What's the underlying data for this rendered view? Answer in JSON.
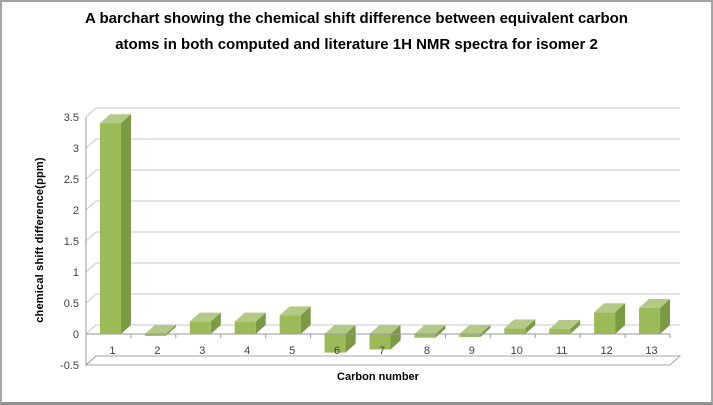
{
  "window": {
    "background": "#ffffff",
    "frame_border_color": "#a4a4a4"
  },
  "chart_data": {
    "type": "bar",
    "style": "3d-column",
    "title": "A barchart showing the chemical shift difference between equivalent carbon atoms in both computed and literature  1H NMR spectra for isomer 2",
    "xlabel": "Carbon number",
    "ylabel": "chemical shift difference(ppm)",
    "categories": [
      "1",
      "2",
      "3",
      "4",
      "5",
      "6",
      "7",
      "8",
      "9",
      "10",
      "11",
      "12",
      "13"
    ],
    "values": [
      3.4,
      -0.03,
      0.2,
      0.2,
      0.3,
      -0.3,
      -0.25,
      -0.06,
      -0.05,
      0.09,
      0.08,
      0.35,
      0.42
    ],
    "ylim": [
      -0.5,
      3.5
    ],
    "ytick_step": 0.5,
    "yticks": [
      "3.5",
      "3",
      "2.5",
      "2",
      "1.5",
      "1",
      "0.5",
      "0",
      "-0.5"
    ],
    "grid": true,
    "legend": "none",
    "colors": {
      "bar_front": "#9bbb59",
      "bar_top": "#b3c986",
      "bar_side": "#7a9a44",
      "gridline": "#c8c8c8",
      "axis_line": "#9a9a9a",
      "floor_line": "#a5a5a5",
      "tick_text": "#3f3f3f",
      "title_text": "#000000"
    }
  }
}
